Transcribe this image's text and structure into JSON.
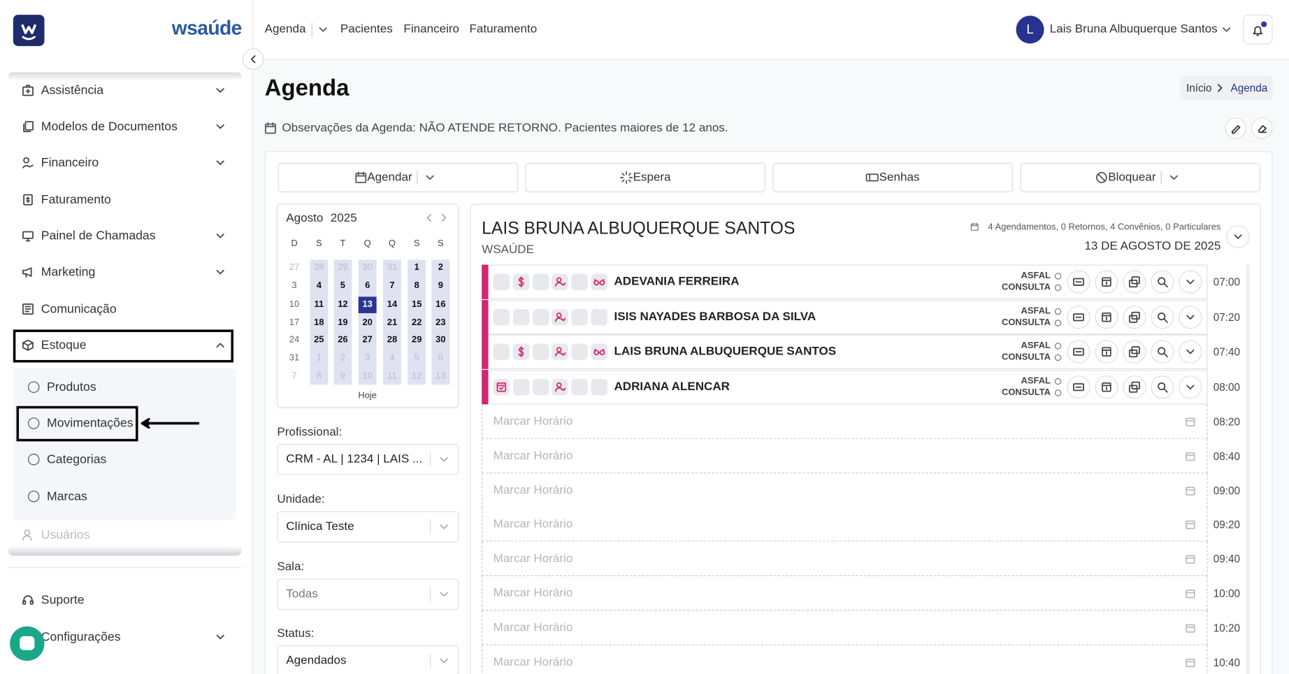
{
  "sidebar": {
    "brand": "wsaúde",
    "menu": [
      {
        "label": "Assistência",
        "icon": "building",
        "expand": "down"
      },
      {
        "label": "Modelos de Documentos",
        "icon": "docs",
        "expand": "down"
      },
      {
        "label": "Financeiro",
        "icon": "money",
        "expand": "down"
      },
      {
        "label": "Faturamento",
        "icon": "invoice"
      },
      {
        "label": "Painel de Chamadas",
        "icon": "monitor",
        "expand": "down"
      },
      {
        "label": "Marketing",
        "icon": "megaphone",
        "expand": "down"
      },
      {
        "label": "Comunicação",
        "icon": "news"
      },
      {
        "label": "Estoque",
        "icon": "box",
        "expand": "up",
        "highlight": true
      }
    ],
    "submenu": [
      {
        "label": "Produtos"
      },
      {
        "label": "Movimentações",
        "highlight": true
      },
      {
        "label": "Categorias"
      },
      {
        "label": "Marcas"
      }
    ],
    "faded": "Usuários",
    "bottom": [
      {
        "label": "Suporte",
        "icon": "headset"
      },
      {
        "label": "Configurações",
        "icon": "gear",
        "expand": "down"
      }
    ]
  },
  "topbar": {
    "nav": [
      "Agenda",
      "Pacientes",
      "Financeiro",
      "Faturamento"
    ],
    "user_initial": "L",
    "user_name": "Lais Bruna Albuquerque Santos"
  },
  "header": {
    "title": "Agenda",
    "breadcrumb": [
      "Início",
      "Agenda"
    ],
    "observation": "Observações da Agenda: NÃO ATENDE RETORNO. Pacientes maiores de 12 anos."
  },
  "actions": [
    {
      "label": "Agendar",
      "icon": "calendar",
      "dropdown": true
    },
    {
      "label": "Espera",
      "icon": "spinner"
    },
    {
      "label": "Senhas",
      "icon": "ticket"
    },
    {
      "label": "Bloquear",
      "icon": "block",
      "dropdown": true
    }
  ],
  "calendar": {
    "month": "Agosto",
    "year": "2025",
    "weekdays": [
      "D",
      "S",
      "T",
      "Q",
      "Q",
      "S",
      "S"
    ],
    "weeks": [
      [
        27,
        28,
        29,
        30,
        31,
        1,
        2
      ],
      [
        3,
        4,
        5,
        6,
        7,
        8,
        9
      ],
      [
        10,
        11,
        12,
        13,
        14,
        15,
        16
      ],
      [
        17,
        18,
        19,
        20,
        21,
        22,
        23
      ],
      [
        24,
        25,
        26,
        27,
        28,
        29,
        30
      ],
      [
        31,
        1,
        2,
        3,
        4,
        5,
        6
      ],
      [
        7,
        8,
        9,
        10,
        11,
        12,
        13
      ]
    ],
    "today_label": "Hoje"
  },
  "filters": [
    {
      "label": "Profissional:",
      "value": "CRM - AL | 1234 | LAIS ..."
    },
    {
      "label": "Unidade:",
      "value": "Clínica Teste"
    },
    {
      "label": "Sala:",
      "value": "Todas",
      "muted": true
    },
    {
      "label": "Status:",
      "value": "Agendados"
    }
  ],
  "schedule": {
    "professional": "LAIS BRUNA ALBUQUERQUE SANTOS",
    "clinic": "WSAÚDE",
    "summary": "4 Agendamentos, 0 Retornos, 4 Convênios, 0 Particulares",
    "date": "13 DE AGOSTO DE 2025",
    "appointments": [
      {
        "name": "ADEVANIA FERREIRA",
        "insurance": "ASFAL",
        "kind": "CONSULTA",
        "time": "07:00",
        "flags": [
          "paid",
          "patient",
          "vision"
        ]
      },
      {
        "name": "ISIS NAYADES BARBOSA DA SILVA",
        "insurance": "ASFAL",
        "kind": "CONSULTA",
        "time": "07:20",
        "flags": [
          "patient"
        ]
      },
      {
        "name": "LAIS BRUNA ALBUQUERQUE SANTOS",
        "insurance": "ASFAL",
        "kind": "CONSULTA",
        "time": "07:40",
        "flags": [
          "paid",
          "patient",
          "vision"
        ]
      },
      {
        "name": "ADRIANA ALENCAR",
        "insurance": "ASFAL",
        "kind": "CONSULTA",
        "time": "08:00",
        "flags": [
          "scheduled",
          "patient"
        ]
      }
    ],
    "empty_label": "Marcar Horário",
    "empty_times": [
      "08:20",
      "08:40",
      "09:00",
      "09:20",
      "09:40",
      "10:00",
      "10:20",
      "10:40"
    ]
  }
}
